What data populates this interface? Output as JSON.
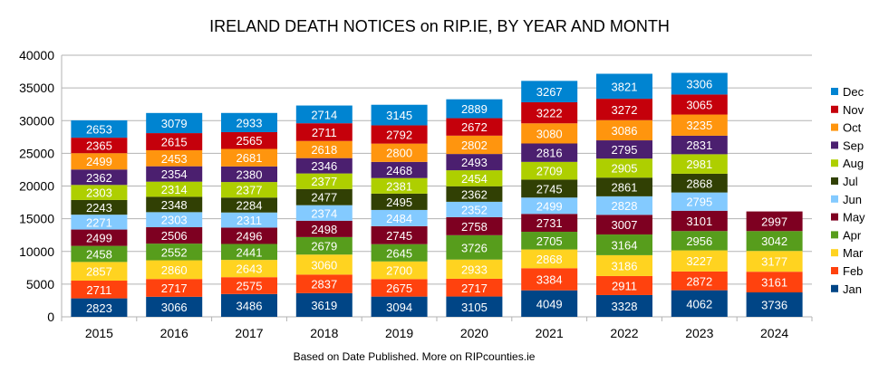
{
  "chart_data": {
    "type": "bar",
    "stacked": true,
    "title": "IRELAND DEATH NOTICES on RIP.IE, BY YEAR AND MONTH",
    "note": "Based on Date Published. More on RIPcounties.ie",
    "xlabel": "",
    "ylabel": "",
    "ylim": [
      0,
      40000
    ],
    "yticks": [
      0,
      5000,
      10000,
      15000,
      20000,
      25000,
      30000,
      35000,
      40000
    ],
    "grid": true,
    "legend_position": "right",
    "categories": [
      "2015",
      "2016",
      "2017",
      "2018",
      "2019",
      "2020",
      "2021",
      "2022",
      "2023",
      "2024"
    ],
    "series": [
      {
        "name": "Jan",
        "color": "#004586",
        "values": [
          2823,
          3066,
          3486,
          3619,
          3094,
          3105,
          4049,
          3328,
          4062,
          3736
        ]
      },
      {
        "name": "Feb",
        "color": "#ff420e",
        "values": [
          2711,
          2717,
          2575,
          2837,
          2675,
          2717,
          3384,
          2911,
          2872,
          3161
        ]
      },
      {
        "name": "Mar",
        "color": "#ffd320",
        "values": [
          2857,
          2860,
          2643,
          3060,
          2700,
          2933,
          2868,
          3186,
          3227,
          3177
        ]
      },
      {
        "name": "Apr",
        "color": "#579d1c",
        "values": [
          2458,
          2552,
          2441,
          2679,
          2645,
          3726,
          2705,
          3164,
          2956,
          3042
        ]
      },
      {
        "name": "May",
        "color": "#7e0021",
        "values": [
          2499,
          2506,
          2496,
          2498,
          2745,
          2758,
          2731,
          3007,
          3101,
          2997
        ]
      },
      {
        "name": "Jun",
        "color": "#83caff",
        "values": [
          2271,
          2303,
          2311,
          2374,
          2484,
          2352,
          2499,
          2828,
          2795,
          null
        ]
      },
      {
        "name": "Jul",
        "color": "#314004",
        "values": [
          2243,
          2348,
          2284,
          2477,
          2495,
          2362,
          2745,
          2861,
          2868,
          null
        ]
      },
      {
        "name": "Aug",
        "color": "#aecf00",
        "values": [
          2303,
          2314,
          2377,
          2377,
          2381,
          2454,
          2709,
          2905,
          2981,
          null
        ]
      },
      {
        "name": "Sep",
        "color": "#4b1f6f",
        "values": [
          2362,
          2354,
          2380,
          2346,
          2468,
          2493,
          2816,
          2795,
          2831,
          null
        ]
      },
      {
        "name": "Oct",
        "color": "#ff950e",
        "values": [
          2499,
          2453,
          2681,
          2618,
          2800,
          2802,
          3080,
          3086,
          3235,
          null
        ]
      },
      {
        "name": "Nov",
        "color": "#c5000b",
        "values": [
          2365,
          2615,
          2565,
          2711,
          2792,
          2672,
          3222,
          3272,
          3065,
          null
        ]
      },
      {
        "name": "Dec",
        "color": "#0084d1",
        "values": [
          2653,
          3079,
          2933,
          2714,
          3145,
          2889,
          3267,
          3821,
          3306,
          null
        ]
      }
    ]
  }
}
